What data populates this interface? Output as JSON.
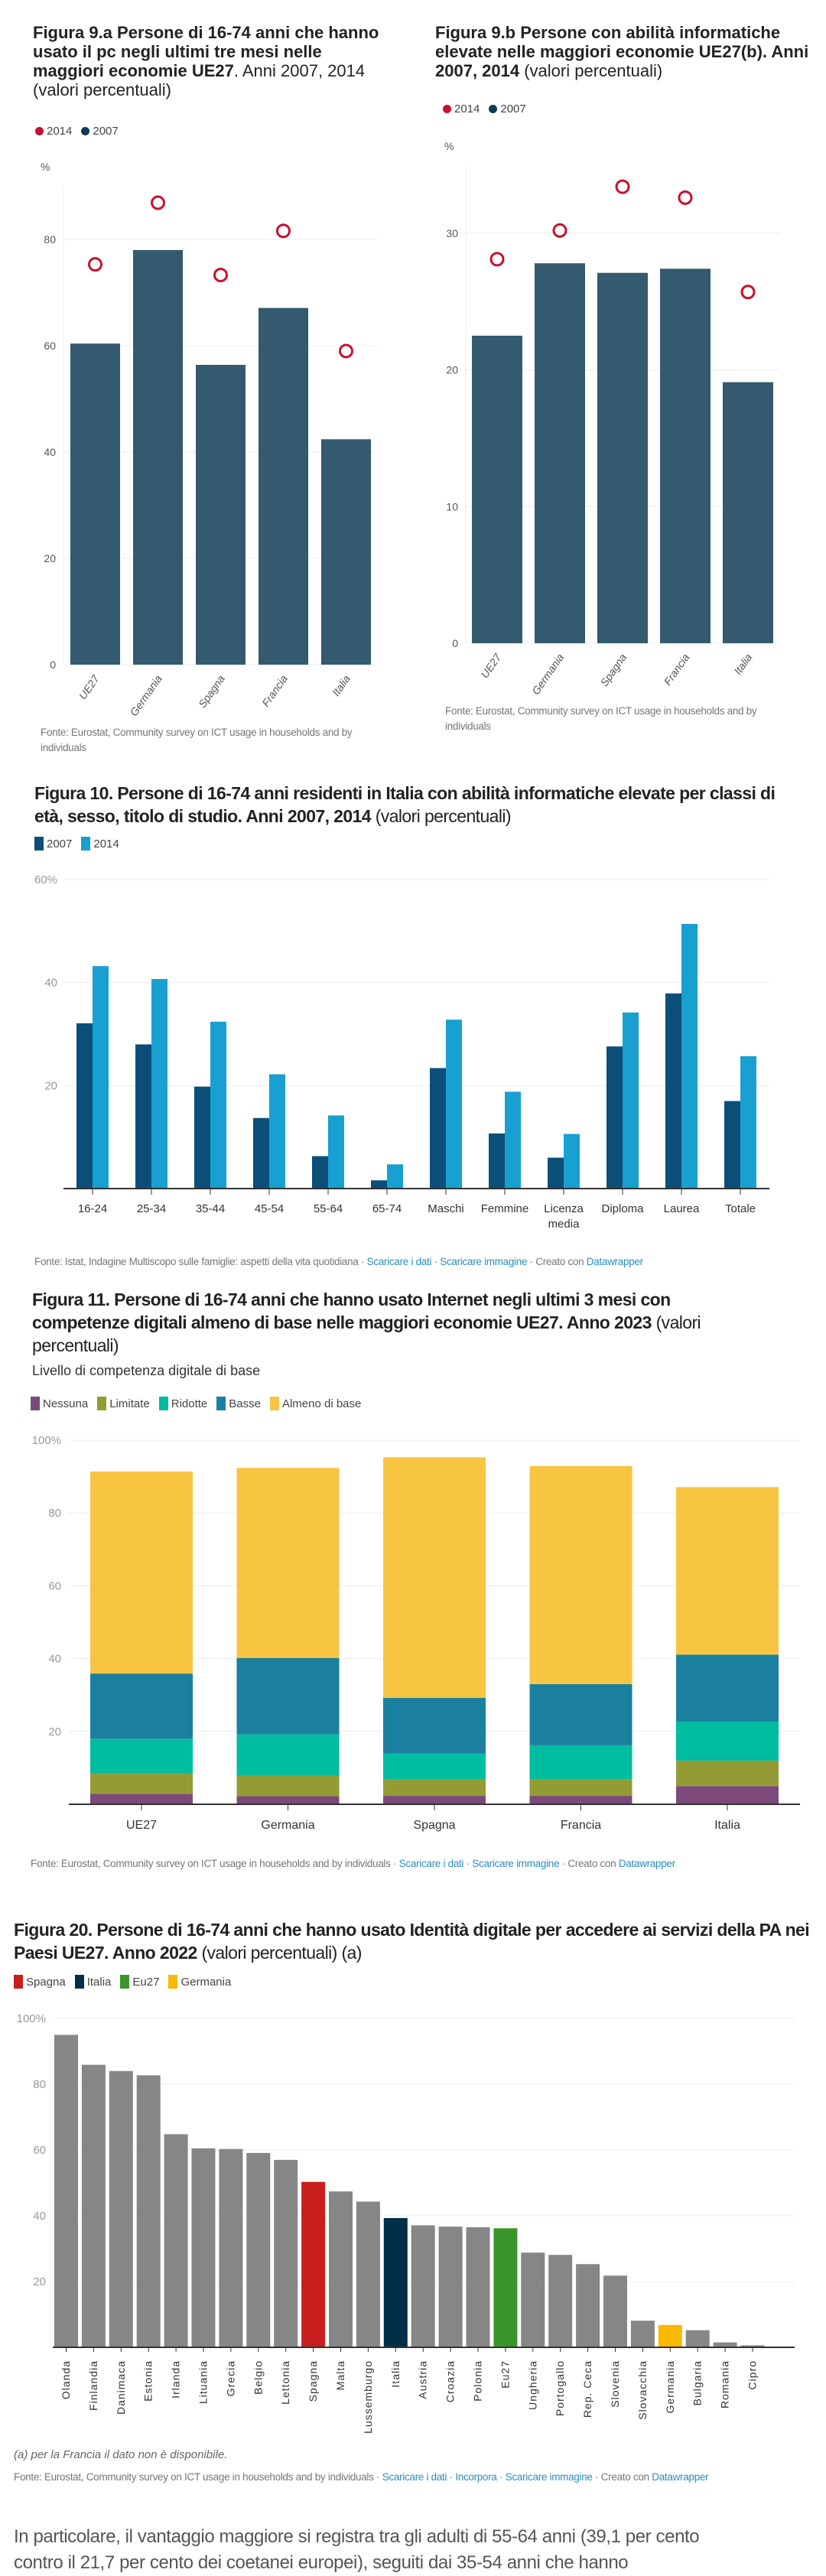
{
  "figures": [
    {
      "title_bold": "Figura 9.a Persone di 16-74 anni che hanno usato il pc negli ultimi tre mesi nelle maggiori economie UE27",
      "title_regular": ". Anni 2007, 2014 (valori percentuali)",
      "legend": [
        {
          "label": "2014",
          "color": "#c8102e"
        },
        {
          "label": "2007",
          "color": "#0d3b55"
        }
      ],
      "unit": "%",
      "fonte": "Fonte: Eurostat, Community survey on ICT usage in households and by individuals"
    },
    {
      "title_bold": "Figura 9.b Persone con abilità informatiche elevate nelle maggiori economie UE27(b). Anni 2007, 2014",
      "title_regular": " (valori percentuali)",
      "legend": [
        {
          "label": "2014",
          "color": "#c8102e"
        },
        {
          "label": "2007",
          "color": "#0d3b55"
        }
      ],
      "unit": "%",
      "fonte": "Fonte: Eurostat, Community survey on ICT usage in households and by individuals"
    },
    {
      "title_bold": "Figura 10. Persone di 16-74 anni residenti in Italia con abilità informatiche elevate per classi di età, sesso, titolo di studio. Anni 2007, 2014",
      "title_regular": " (valori percentuali)",
      "legend": [
        {
          "label": "2007",
          "color": "#0b4f78"
        },
        {
          "label": "2014",
          "color": "#18a0d0"
        }
      ],
      "fonte": "Fonte: Istat, Indagine Multiscopo sulle famiglie: aspetti della vita quotidiana",
      "links": [
        "Scaricare i dati",
        "Scaricare immagine"
      ],
      "created": "Creato con",
      "brand": "Datawrapper"
    },
    {
      "title_bold": "Figura 11. Persone di 16-74 anni che hanno usato Internet negli ultimi 3 mesi con competenze digitali almeno di base nelle maggiori economie UE27. Anno 2023",
      "title_regular": " (valori percentuali)",
      "subtitle": "Livello di competenza digitale di base",
      "legend": [
        {
          "label": "Nessuna",
          "color": "#7b4a7a"
        },
        {
          "label": "Limitate",
          "color": "#939b34"
        },
        {
          "label": "Ridotte",
          "color": "#00bca0"
        },
        {
          "label": "Basse",
          "color": "#1b80a0"
        },
        {
          "label": "Almeno di base",
          "color": "#f7c542"
        }
      ],
      "fonte": "Fonte: Eurostat, Community survey on ICT usage in households and by individuals",
      "links": [
        "Scaricare i dati",
        "Scaricare immagine"
      ],
      "created": "Creato con",
      "brand": "Datawrapper"
    },
    {
      "title_bold": "Figura 20. Persone di 16-74 anni che hanno usato Identità digitale per accedere ai servizi della PA nei Paesi UE27. Anno 2022",
      "title_regular": " (valori percentuali) (a)",
      "legend": [
        {
          "label": "Spagna",
          "color": "#c81e1e"
        },
        {
          "label": "Italia",
          "color": "#003049"
        },
        {
          "label": "Eu27",
          "color": "#3a962a"
        },
        {
          "label": "Germania",
          "color": "#f8b800"
        }
      ],
      "note": "(a) per la Francia il dato non è disponibile.",
      "fonte": "Fonte: Eurostat, Community survey on ICT usage in households and by individuals",
      "links": [
        "Scaricare i dati",
        "Incorpora",
        "Scaricare immagine"
      ],
      "created": "Creato con",
      "brand": "Datawrapper"
    }
  ],
  "paragraph": {
    "line1": "In particolare, il vantaggio maggiore si registra tra gli adulti di 55-64 anni (39,1 per cento",
    "line2": "contro il 21,7 per cento dei coetanei europei), seguiti dai 35-54 anni che hanno"
  },
  "chart_data": [
    {
      "type": "bar",
      "title": "Figura 9.a",
      "categories": [
        "UE27",
        "Germania",
        "Spagna",
        "Francia",
        "Italia"
      ],
      "series": [
        {
          "name": "2007",
          "mark": "bar",
          "color": "#335a6e",
          "values": [
            60.4,
            78.0,
            56.4,
            67.1,
            42.4
          ]
        },
        {
          "name": "2014",
          "mark": "circle",
          "color": "#c8102e",
          "values": [
            75.3,
            86.9,
            73.3,
            81.6,
            59.0
          ]
        }
      ],
      "ylabel": "%",
      "ylim": [
        0,
        90
      ],
      "yticks": [
        "0",
        "20",
        "40",
        "60",
        "80"
      ],
      "grid": true
    },
    {
      "type": "bar",
      "title": "Figura 9.b",
      "categories": [
        "UE27",
        "Germania",
        "Spagna",
        "Francia",
        "Italia"
      ],
      "series": [
        {
          "name": "2007",
          "mark": "bar",
          "color": "#335a6e",
          "values": [
            22.5,
            27.8,
            27.1,
            27.4,
            19.1
          ]
        },
        {
          "name": "2014",
          "mark": "circle",
          "color": "#c8102e",
          "values": [
            28.1,
            30.2,
            33.4,
            32.6,
            25.7
          ]
        }
      ],
      "ylabel": "%",
      "ylim": [
        0,
        35
      ],
      "yticks": [
        "0",
        "10",
        "20",
        "30"
      ],
      "grid": true
    },
    {
      "type": "bar",
      "title": "Figura 10",
      "categories": [
        "16-24",
        "25-34",
        "35-44",
        "45-54",
        "55-64",
        "65-74",
        "Maschi",
        "Femmine",
        "Licenza media",
        "Diploma",
        "Laurea",
        "Totale"
      ],
      "series": [
        {
          "name": "2007",
          "color": "#0b4f78",
          "values": [
            32.1,
            28.0,
            19.8,
            13.7,
            6.3,
            1.6,
            23.4,
            10.7,
            6.0,
            27.6,
            37.9,
            17.0
          ]
        },
        {
          "name": "2014",
          "color": "#18a0d0",
          "values": [
            43.2,
            40.7,
            32.4,
            22.2,
            14.2,
            4.7,
            32.8,
            18.8,
            10.6,
            34.2,
            51.4,
            25.7
          ]
        }
      ],
      "ylim": [
        0,
        60
      ],
      "yticks": [
        "20",
        "40",
        "60%"
      ],
      "grid": true,
      "legend": "top-left"
    },
    {
      "type": "bar",
      "stacked": true,
      "title": "Figura 11",
      "categories": [
        "UE27",
        "Germania",
        "Spagna",
        "Francia",
        "Italia"
      ],
      "series": [
        {
          "name": "Nessuna",
          "color": "#7b4a7a",
          "values": [
            2.9,
            2.2,
            2.3,
            2.3,
            5.0
          ]
        },
        {
          "name": "Limitate",
          "color": "#939b34",
          "values": [
            5.6,
            5.6,
            4.5,
            4.6,
            7.0
          ]
        },
        {
          "name": "Ridotte",
          "color": "#00bca0",
          "values": [
            9.5,
            11.4,
            7.1,
            9.3,
            10.7
          ]
        },
        {
          "name": "Basse",
          "color": "#1b80a0",
          "values": [
            17.9,
            21.0,
            15.3,
            16.8,
            18.4
          ]
        },
        {
          "name": "Almeno di base",
          "color": "#f7c542",
          "values": [
            55.5,
            52.2,
            66.1,
            59.9,
            46.0
          ]
        }
      ],
      "ylim": [
        0,
        100
      ],
      "yticks": [
        "20",
        "40",
        "60",
        "80",
        "100%"
      ],
      "grid": true,
      "legend": "top-left"
    },
    {
      "type": "bar",
      "title": "Figura 20",
      "categories": [
        "Olanda",
        "Finlandia",
        "Danimaca",
        "Estonia",
        "Irlanda",
        "Lituania",
        "Grecia",
        "Belgio",
        "Lettonia",
        "Spagna",
        "Malta",
        "Lussemburgo",
        "Italia",
        "Austria",
        "Croazia",
        "Polonia",
        "Eu27",
        "Ungheria",
        "Portogallo",
        "Rep. Ceca",
        "Slovenia",
        "Slovacchia",
        "Germania",
        "Bulgaria",
        "Romania",
        "Cipro"
      ],
      "values": [
        95.0,
        85.9,
        84.0,
        82.7,
        64.8,
        60.5,
        60.3,
        59.1,
        57.0,
        50.3,
        47.4,
        44.3,
        39.3,
        37.1,
        36.7,
        36.5,
        36.2,
        28.8,
        28.1,
        25.3,
        21.8,
        8.1,
        6.8,
        5.2,
        1.5,
        0.6
      ],
      "default_color": "#868686",
      "highlight": {
        "Spagna": "#c81e1e",
        "Italia": "#003049",
        "Eu27": "#3a962a",
        "Germania": "#f8b800"
      },
      "ylim": [
        0,
        100
      ],
      "yticks": [
        "20",
        "40",
        "60",
        "80",
        "100%"
      ],
      "grid": true,
      "legend": "top-left"
    }
  ]
}
